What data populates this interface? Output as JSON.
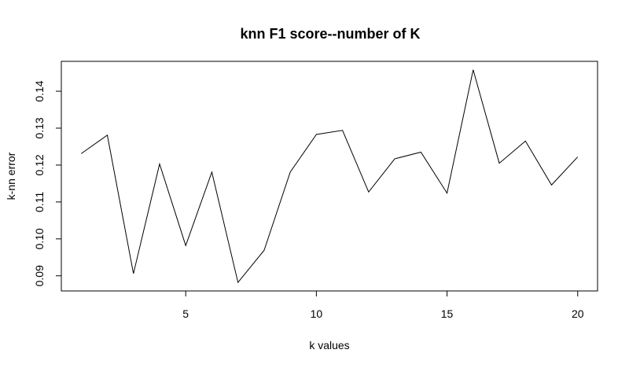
{
  "chart_data": {
    "type": "line",
    "title": "knn F1 score--number of K",
    "xlabel": "k values",
    "ylabel": "k-nn error",
    "x": [
      1,
      2,
      3,
      4,
      5,
      6,
      7,
      8,
      9,
      10,
      11,
      12,
      13,
      14,
      15,
      16,
      17,
      18,
      19,
      20
    ],
    "y": [
      0.1231,
      0.1281,
      0.0906,
      0.1203,
      0.0982,
      0.1181,
      0.0882,
      0.0969,
      0.1181,
      0.1283,
      0.1294,
      0.1127,
      0.1217,
      0.1235,
      0.1124,
      0.1458,
      0.1205,
      0.1265,
      0.1146,
      0.1222
    ],
    "xlim": [
      0.24,
      20.76
    ],
    "ylim": [
      0.0859,
      0.1481
    ],
    "x_ticks": [
      5,
      10,
      15,
      20
    ],
    "x_tick_labels": [
      "5",
      "10",
      "15",
      "20"
    ],
    "y_ticks": [
      0.09,
      0.1,
      0.11,
      0.12,
      0.13,
      0.14
    ],
    "y_tick_labels": [
      "0.09",
      "0.10",
      "0.11",
      "0.12",
      "0.13",
      "0.14"
    ],
    "grid": false,
    "line_color": "#000000"
  }
}
